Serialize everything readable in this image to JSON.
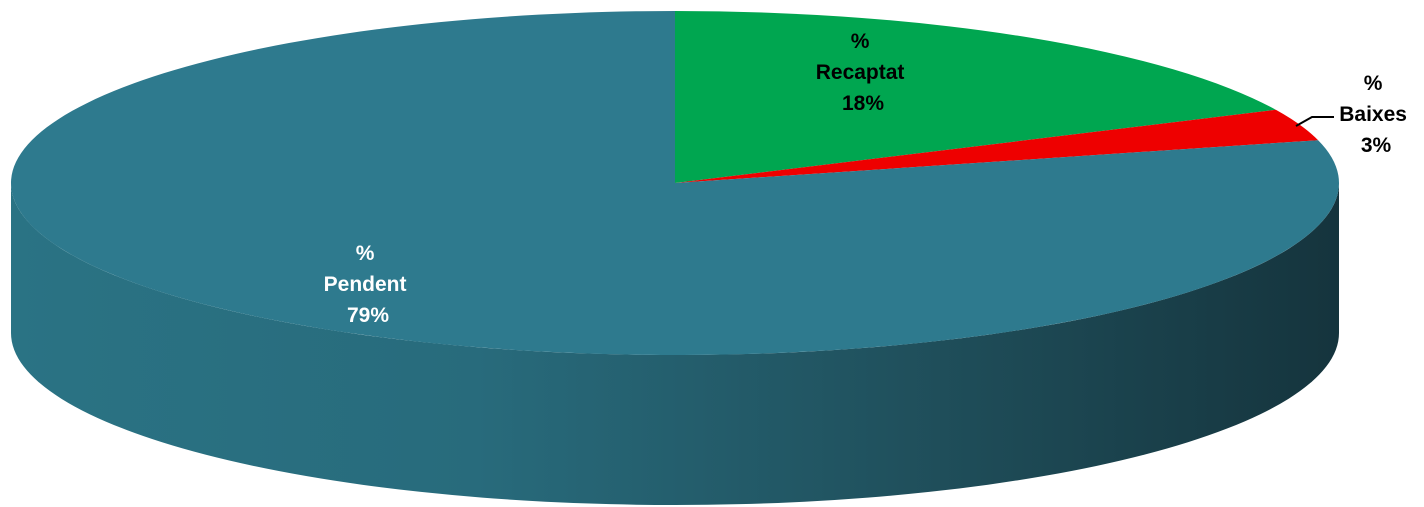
{
  "chart_data": {
    "type": "pie",
    "style": "3d",
    "slices": [
      {
        "name": "Recaptat",
        "value": 18,
        "label_lines": [
          "%",
          "Recaptat",
          "18%"
        ],
        "color": "#00a650",
        "label_color": "#000000"
      },
      {
        "name": "Baixes",
        "value": 3,
        "label_lines": [
          "%",
          "Baixes",
          "3%"
        ],
        "color": "#ee0000",
        "label_color": "#000000"
      },
      {
        "name": "Pendent",
        "value": 79,
        "label_lines": [
          "%",
          "Pendent",
          "79%"
        ],
        "color": "#2e7a8e",
        "label_color": "#ffffff"
      }
    ],
    "legend": "none"
  }
}
